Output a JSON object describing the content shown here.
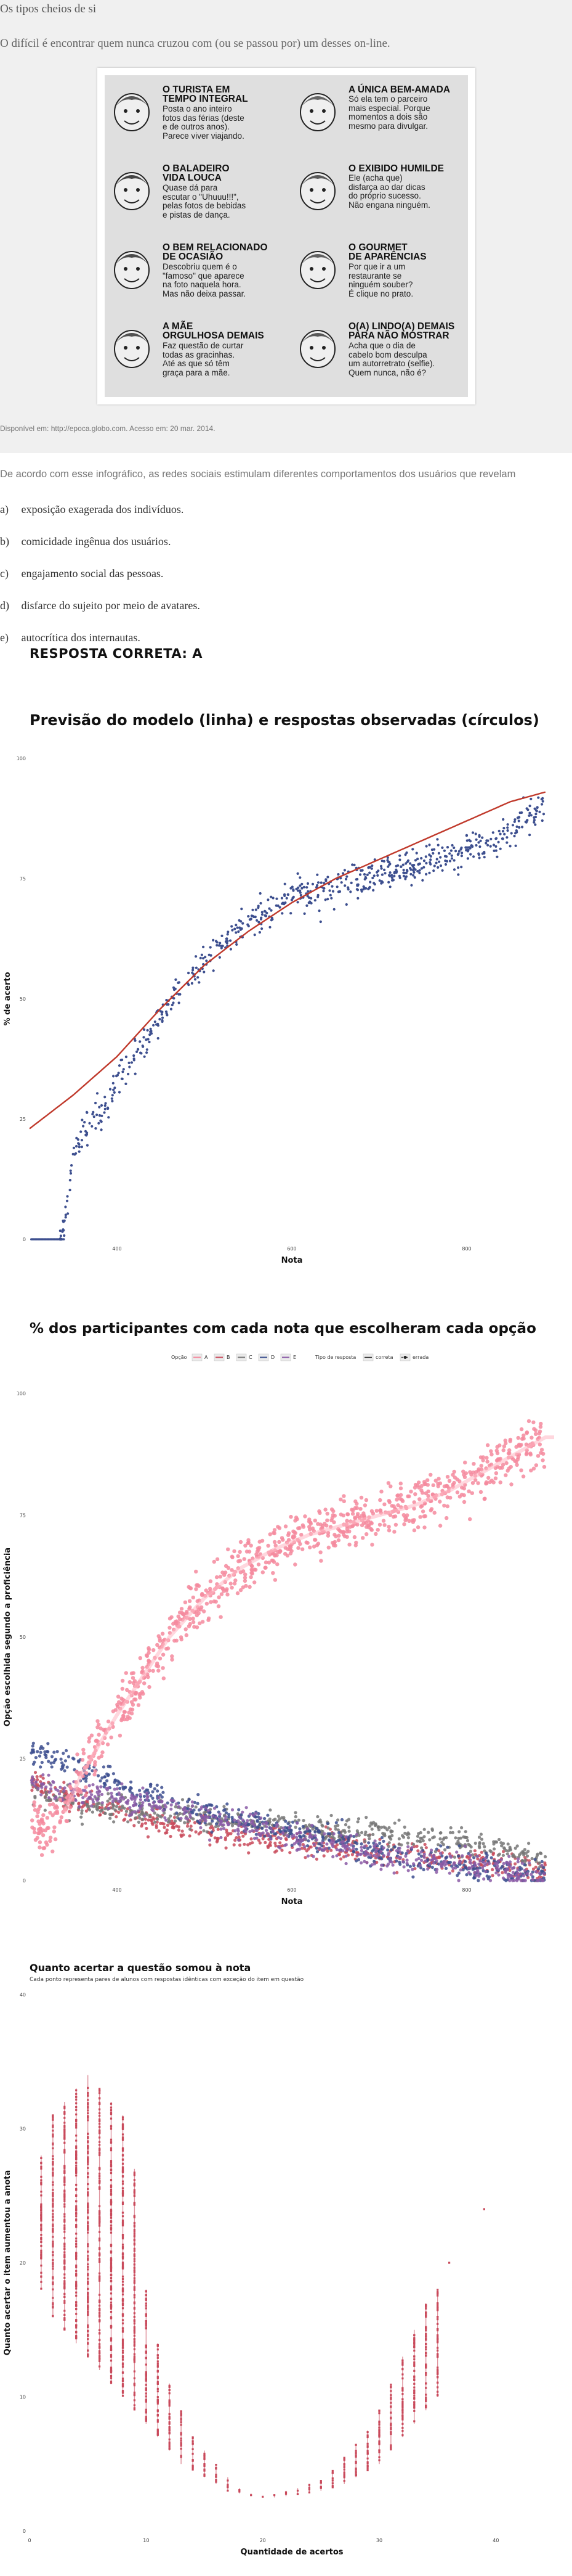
{
  "question": {
    "title": "Os tipos cheios de si",
    "subtitle": "O difícil é encontrar quem nunca cruzou com (ou se passou por) um desses on-line.",
    "infographic": [
      {
        "head": "O TURISTA EM\nTEMPO INTEGRAL",
        "body": "Posta o ano inteiro\nfotos das férias (deste\ne de outros anos).\nParece viver viajando."
      },
      {
        "head": "A ÚNICA BEM-AMADA",
        "body": "Só ela tem o parceiro\nmais especial. Porque\nmomentos a dois são\nmesmo para divulgar."
      },
      {
        "head": "O BALADEIRO\nVIDA LOUCA",
        "body": "Quase dá para\nescutar o \"Uhuuu!!!\",\npelas fotos de bebidas\ne pistas de dança."
      },
      {
        "head": "O EXIBIDO HUMILDE",
        "body": "Ele (acha que)\ndisfarça ao dar dicas\ndo próprio sucesso.\nNão engana ninguém."
      },
      {
        "head": "O BEM RELACIONADO\nDE OCASIÃO",
        "body": "Descobriu quem é o\n\"famoso\" que aparece\nna foto naquela hora.\nMas não deixa passar."
      },
      {
        "head": "O GOURMET\nDE APARÊNCIAS",
        "body": "Por que ir a um\nrestaurante se\nninguém souber?\nÉ clique no prato."
      },
      {
        "head": "A MÃE\nORGULHOSA DEMAIS",
        "body": "Faz questão de curtar\ntodas as gracinhas.\nAté as que só têm\ngraça para a mãe."
      },
      {
        "head": "O(A) LINDO(A) DEMAIS\nPARA NÃO MOSTRAR",
        "body": "Acha que o dia de\ncabelo bom desculpa\num autorretrato (selfie).\nQuem nunca, não é?"
      }
    ],
    "source": "Disponível em: http://epoca.globo.com. Acesso em: 20 mar. 2014.",
    "stem": "De acordo com esse infográfico, as redes sociais estimulam diferentes comportamentos dos usuários que revelam",
    "options": [
      {
        "letter": "a)",
        "text": "exposição exagerada dos indivíduos."
      },
      {
        "letter": "b)",
        "text": "comicidade ingênua dos usuários."
      },
      {
        "letter": "c)",
        "text": "engajamento social das pessoas."
      },
      {
        "letter": "d)",
        "text": "disfarce do sujeito por meio de avatares."
      },
      {
        "letter": "e)",
        "text": "autocrítica dos internautas."
      }
    ],
    "answer": "RESPOSTA CORRETA: A"
  },
  "chart_data": [
    {
      "type": "scatter",
      "title": "Previsão do modelo (linha) e respostas observadas (círculos)",
      "xlabel": "Nota",
      "ylabel": "% de acerto",
      "xlim": [
        300,
        900
      ],
      "ylim": [
        0,
        100
      ],
      "yticks": [
        0,
        25,
        50,
        75,
        100
      ],
      "xticks": [
        400,
        600,
        800
      ],
      "xtick_labels": [
        "400",
        "600",
        "800"
      ],
      "observed_point_count": 700,
      "observed_color": "#3d4f8f",
      "model_color": "#c0392b",
      "model_curve": {
        "x": [
          300,
          350,
          400,
          450,
          500,
          550,
          600,
          650,
          700,
          750,
          800,
          850,
          890
        ],
        "y": [
          23,
          30,
          38,
          48,
          57,
          64,
          70,
          75,
          79,
          83,
          87,
          91,
          93
        ]
      },
      "observed_trend": {
        "x": [
          302,
          335,
          340,
          345,
          350,
          360,
          380,
          400,
          420,
          450,
          480,
          500,
          520,
          550,
          580,
          600,
          630,
          650,
          680,
          700,
          730,
          750,
          780,
          800,
          830,
          850,
          870,
          890
        ],
        "y": [
          0,
          0,
          3,
          10,
          18,
          22,
          26,
          32,
          38,
          46,
          54,
          58,
          62,
          66,
          69,
          71,
          73,
          74,
          75,
          76,
          77,
          78,
          79,
          81,
          83,
          85,
          88,
          91
        ]
      }
    },
    {
      "type": "scatter",
      "title": "% dos participantes com cada nota que escolheram cada opção",
      "xlabel": "Nota",
      "ylabel": "Opção escolhida segundo a proficiência",
      "xlim": [
        300,
        900
      ],
      "ylim": [
        0,
        100
      ],
      "yticks": [
        0,
        25,
        50,
        75,
        100
      ],
      "xticks": [
        400,
        600,
        800
      ],
      "xtick_labels": [
        "400",
        "600",
        "800"
      ],
      "legend": {
        "placement": "top",
        "option_title": "Opção",
        "type_title": "Tipo de resposta",
        "type_entries": [
          "correta",
          "errada"
        ]
      },
      "series": [
        {
          "name": "A",
          "color": "#f4899d",
          "correct": true,
          "x": [
            302,
            320,
            340,
            360,
            380,
            400,
            430,
            460,
            500,
            540,
            580,
            620,
            660,
            700,
            740,
            780,
            820,
            860,
            890
          ],
          "y": [
            12,
            10,
            14,
            22,
            28,
            34,
            42,
            50,
            58,
            64,
            68,
            71,
            73,
            75,
            77,
            80,
            84,
            88,
            91
          ]
        },
        {
          "name": "B",
          "color": "#c94a5b",
          "correct": false,
          "x": [
            302,
            330,
            360,
            400,
            450,
            500,
            550,
            600,
            650,
            700,
            750,
            800,
            850,
            890
          ],
          "y": [
            20,
            18,
            16,
            14,
            12,
            10,
            9,
            8,
            7,
            6,
            5,
            4,
            3,
            2
          ]
        },
        {
          "name": "C",
          "color": "#777777",
          "correct": false,
          "x": [
            302,
            330,
            360,
            400,
            450,
            500,
            550,
            600,
            650,
            700,
            750,
            800,
            850,
            890
          ],
          "y": [
            18,
            17,
            16,
            15,
            14,
            13,
            12,
            11,
            10,
            10,
            9,
            8,
            6,
            4
          ]
        },
        {
          "name": "D",
          "color": "#3d4f8f",
          "correct": false,
          "x": [
            302,
            330,
            360,
            400,
            450,
            500,
            550,
            600,
            650,
            700,
            750,
            800,
            850,
            890
          ],
          "y": [
            26,
            25,
            23,
            20,
            17,
            14,
            12,
            10,
            8,
            6,
            4,
            3,
            2,
            1
          ]
        },
        {
          "name": "E",
          "color": "#8a5aa6",
          "correct": false,
          "x": [
            302,
            330,
            360,
            400,
            450,
            500,
            550,
            600,
            650,
            700,
            750,
            800,
            850,
            890
          ],
          "y": [
            20,
            19,
            18,
            17,
            15,
            13,
            11,
            9,
            7,
            5,
            4,
            3,
            2,
            1
          ]
        }
      ]
    },
    {
      "type": "scatter",
      "title": "Quanto acertar a questão somou à nota",
      "subtitle": "Cada ponto representa pares de alunos com respostas idênticas com exceção do item em questão",
      "xlabel": "Quantidade de acertos",
      "ylabel": "Quanto acertar o item aumentou a anota",
      "xlim": [
        0,
        45
      ],
      "ylim": [
        0,
        40
      ],
      "xticks": [
        0,
        10,
        20,
        30,
        40
      ],
      "xtick_labels": [
        "0",
        "10",
        "20",
        "30",
        "40"
      ],
      "yticks": [
        0,
        10,
        20,
        30,
        40
      ],
      "ytick_labels": [
        "0",
        "10",
        "20",
        "30",
        "40"
      ],
      "point_color": "#c94a5b",
      "columns": [
        {
          "x": 1,
          "ymin": 18,
          "ymax": 28
        },
        {
          "x": 2,
          "ymin": 16,
          "ymax": 31
        },
        {
          "x": 3,
          "ymin": 15,
          "ymax": 32
        },
        {
          "x": 4,
          "ymin": 14,
          "ymax": 33
        },
        {
          "x": 5,
          "ymin": 13,
          "ymax": 34
        },
        {
          "x": 6,
          "ymin": 12,
          "ymax": 33
        },
        {
          "x": 7,
          "ymin": 11,
          "ymax": 32
        },
        {
          "x": 8,
          "ymin": 10,
          "ymax": 31
        },
        {
          "x": 9,
          "ymin": 9,
          "ymax": 27
        },
        {
          "x": 10,
          "ymin": 8,
          "ymax": 18
        },
        {
          "x": 11,
          "ymin": 7,
          "ymax": 14
        },
        {
          "x": 12,
          "ymin": 6,
          "ymax": 11
        },
        {
          "x": 13,
          "ymin": 5,
          "ymax": 9
        },
        {
          "x": 14,
          "ymin": 4.5,
          "ymax": 7
        },
        {
          "x": 15,
          "ymin": 4,
          "ymax": 6
        },
        {
          "x": 16,
          "ymin": 3.5,
          "ymax": 5
        },
        {
          "x": 17,
          "ymin": 3,
          "ymax": 4
        },
        {
          "x": 18,
          "ymin": 2.8,
          "ymax": 3.2
        },
        {
          "x": 19,
          "ymin": 2.6,
          "ymax": 2.8
        },
        {
          "x": 20,
          "ymin": 2.5,
          "ymax": 2.6
        },
        {
          "x": 21,
          "ymin": 2.5,
          "ymax": 2.7
        },
        {
          "x": 22,
          "ymin": 2.6,
          "ymax": 3
        },
        {
          "x": 23,
          "ymin": 2.7,
          "ymax": 3.2
        },
        {
          "x": 24,
          "ymin": 2.8,
          "ymax": 3.5
        },
        {
          "x": 25,
          "ymin": 3,
          "ymax": 3.8
        },
        {
          "x": 26,
          "ymin": 3.2,
          "ymax": 4.5
        },
        {
          "x": 27,
          "ymin": 3.5,
          "ymax": 5.5
        },
        {
          "x": 28,
          "ymin": 4,
          "ymax": 6.5
        },
        {
          "x": 29,
          "ymin": 4.5,
          "ymax": 7.5
        },
        {
          "x": 30,
          "ymin": 5,
          "ymax": 9
        },
        {
          "x": 31,
          "ymin": 6,
          "ymax": 11
        },
        {
          "x": 32,
          "ymin": 7,
          "ymax": 13
        },
        {
          "x": 33,
          "ymin": 8,
          "ymax": 15
        },
        {
          "x": 34,
          "ymin": 9,
          "ymax": 17
        },
        {
          "x": 35,
          "ymin": 10,
          "ymax": 18
        }
      ],
      "outliers": [
        {
          "x": 39,
          "y": 24
        },
        {
          "x": 36,
          "y": 20
        }
      ]
    }
  ]
}
